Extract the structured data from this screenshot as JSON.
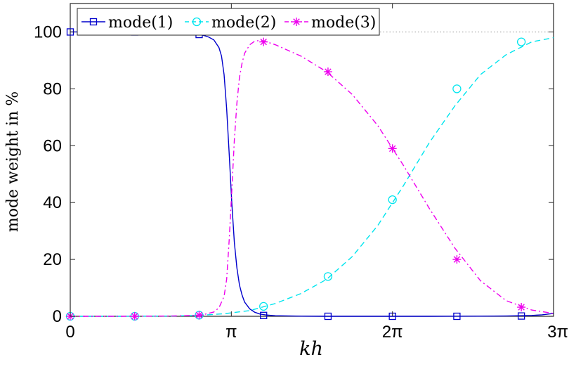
{
  "chart_data": {
    "type": "line",
    "xlabel": "kh",
    "ylabel": "mode weight in %",
    "xlim": [
      0,
      9.42478
    ],
    "ylim": [
      0,
      110
    ],
    "x_ticks": [
      {
        "value": 0,
        "label": "0"
      },
      {
        "value": 3.14159,
        "label": "π"
      },
      {
        "value": 6.28319,
        "label": "2π"
      },
      {
        "value": 9.42478,
        "label": "3π"
      }
    ],
    "y_ticks": [
      {
        "value": 0,
        "label": "0"
      },
      {
        "value": 20,
        "label": "20"
      },
      {
        "value": 40,
        "label": "40"
      },
      {
        "value": 60,
        "label": "60"
      },
      {
        "value": 80,
        "label": "80"
      },
      {
        "value": 100,
        "label": "100"
      }
    ],
    "reference_line": {
      "y": 100,
      "style": "dotted",
      "color": "#888888"
    },
    "grid": false,
    "legend_position": "top-left",
    "series": [
      {
        "name": "mode(1)",
        "color": "#0000cc",
        "line_style": "solid",
        "marker": "square",
        "x": [
          0,
          0.3,
          0.6,
          0.9,
          1.2,
          1.5,
          1.8,
          2.1,
          2.3,
          2.5,
          2.6,
          2.7,
          2.8,
          2.9,
          2.95,
          3.0,
          3.05,
          3.1,
          3.15,
          3.2,
          3.25,
          3.3,
          3.35,
          3.4,
          3.5,
          3.6,
          3.7,
          3.8,
          4.0,
          4.5,
          5.0,
          6.0,
          7.0,
          8.0,
          8.5,
          9.0,
          9.2,
          9.42478
        ],
        "y": [
          100,
          100,
          100,
          100,
          100,
          100,
          99.9,
          99.7,
          99.5,
          99.1,
          98.8,
          98.2,
          97.2,
          94.5,
          91.5,
          85,
          73,
          57,
          40,
          26,
          17,
          11,
          7.5,
          5,
          2.6,
          1.4,
          0.8,
          0.5,
          0.2,
          0.05,
          0,
          0,
          0,
          0.05,
          0.1,
          0.3,
          0.5,
          1
        ],
        "marker_x": [
          0,
          1.2566,
          2.5133,
          3.7699,
          5.0265,
          6.2832,
          7.5398,
          8.7965
        ],
        "marker_y": [
          100,
          100,
          99.1,
          0.3,
          0,
          0,
          0,
          0.1
        ]
      },
      {
        "name": "mode(2)",
        "color": "#00e5ee",
        "line_style": "dashed",
        "marker": "circle",
        "x": [
          0,
          1.0,
          2.0,
          2.5,
          3.0,
          3.5,
          4.0,
          4.5,
          5.0,
          5.5,
          6.0,
          6.5,
          7.0,
          7.5,
          8.0,
          8.5,
          9.0,
          9.42478
        ],
        "y": [
          0,
          0,
          0.1,
          0.3,
          0.9,
          2,
          4.5,
          8,
          13,
          21,
          32,
          46,
          61,
          74,
          85,
          92,
          96.5,
          98
        ],
        "marker_x": [
          0,
          1.2566,
          2.5133,
          3.7699,
          5.0265,
          6.2832,
          7.5398,
          8.7965
        ],
        "marker_y": [
          0,
          0,
          0.4,
          3.5,
          14,
          41,
          80,
          96.5
        ]
      },
      {
        "name": "mode(3)",
        "color": "#ee00ee",
        "line_style": "dashdot",
        "marker": "asterisk",
        "x": [
          0,
          1.0,
          2.0,
          2.4,
          2.6,
          2.8,
          2.9,
          3.0,
          3.05,
          3.1,
          3.15,
          3.2,
          3.25,
          3.3,
          3.35,
          3.4,
          3.5,
          3.6,
          3.7,
          3.8,
          4.0,
          4.5,
          5.0,
          5.5,
          6.0,
          6.5,
          7.0,
          7.5,
          8.0,
          8.5,
          9.0,
          9.42478
        ],
        "y": [
          0,
          0,
          0.1,
          0.3,
          0.6,
          1.5,
          3,
          7,
          13,
          27,
          44,
          62,
          75,
          84,
          89,
          92.5,
          95.5,
          96.8,
          97,
          96.7,
          95.5,
          91.5,
          86,
          78,
          67,
          53,
          38,
          24,
          12.5,
          5.5,
          2.2,
          1
        ],
        "marker_x": [
          0,
          1.2566,
          2.5133,
          3.7699,
          5.0265,
          6.2832,
          7.5398,
          8.7965
        ],
        "marker_y": [
          0,
          0,
          0.4,
          96.5,
          86,
          59,
          20,
          3.2
        ]
      }
    ]
  }
}
